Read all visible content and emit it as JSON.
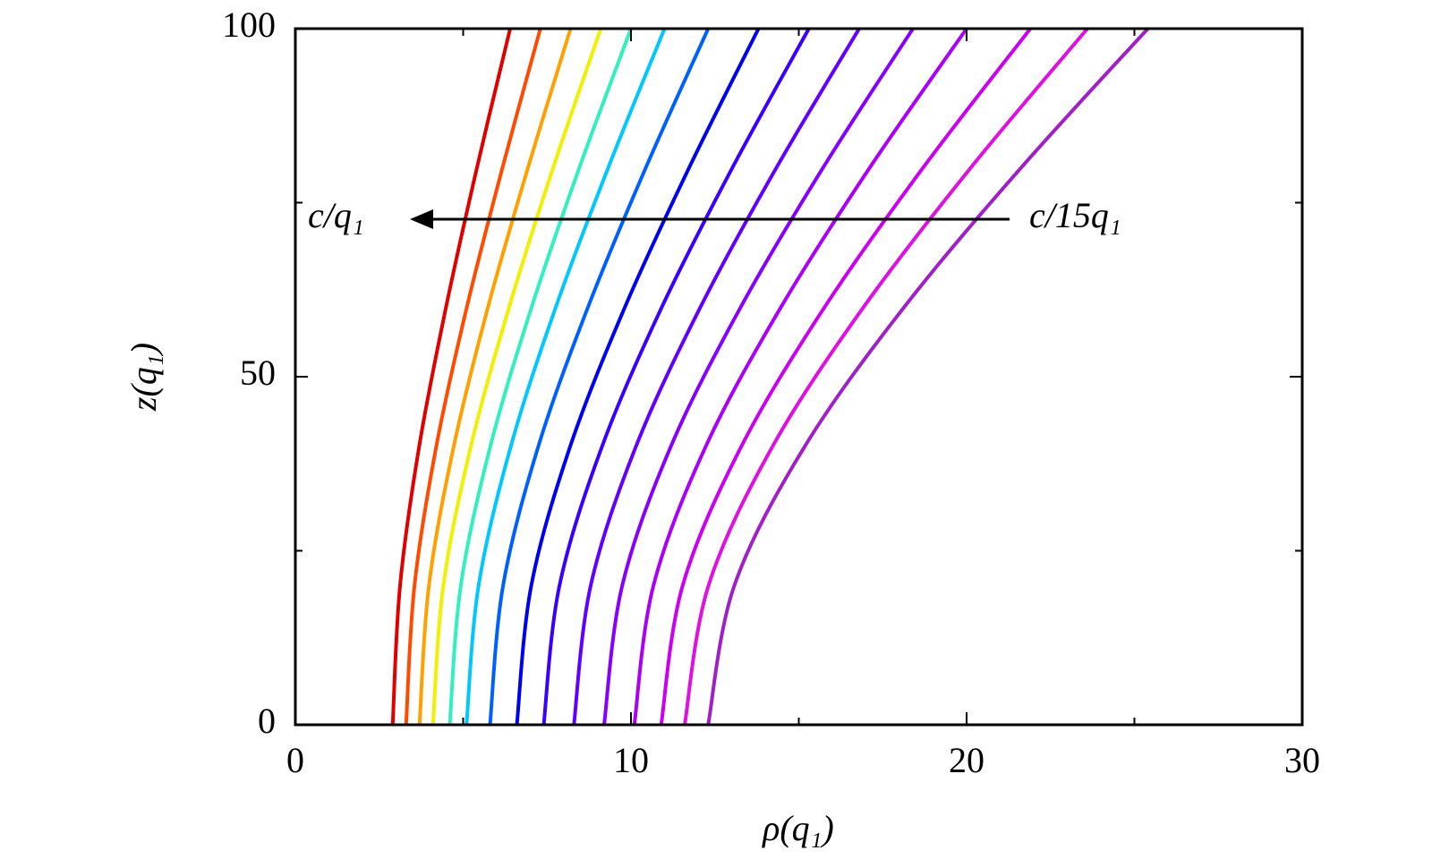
{
  "chart_data": {
    "type": "line",
    "xlabel": "ρ(q₁)",
    "ylabel": "z(q₁)",
    "annotations": [
      "c/q₁",
      "c/15q₁"
    ],
    "xlim": [
      0,
      30
    ],
    "ylim": [
      0,
      100
    ],
    "xticks": [
      0,
      10,
      20,
      30
    ],
    "yticks": [
      0,
      50,
      100
    ],
    "xminorticks": [
      5,
      15,
      25
    ],
    "yminorticks": [
      25,
      75
    ],
    "grid": false,
    "y": [
      0,
      20,
      40,
      60,
      80,
      100
    ],
    "series": [
      {
        "color": "#e00000",
        "x": [
          2.9,
          3.12,
          3.69,
          4.49,
          5.41,
          6.4
        ]
      },
      {
        "color": "#ff4a00",
        "x": [
          3.3,
          3.55,
          4.2,
          5.11,
          6.17,
          7.3
        ]
      },
      {
        "color": "#ffa000",
        "x": [
          3.7,
          3.98,
          4.72,
          5.74,
          6.93,
          8.2
        ]
      },
      {
        "color": "#f0f000",
        "x": [
          4.1,
          4.41,
          5.23,
          6.37,
          7.68,
          9.1
        ]
      },
      {
        "color": "#30f0c0",
        "x": [
          4.6,
          4.93,
          5.81,
          7.04,
          8.46,
          10.0
        ]
      },
      {
        "color": "#00c8ff",
        "x": [
          5.1,
          5.46,
          6.42,
          7.76,
          9.32,
          11.0
        ]
      },
      {
        "color": "#0060ff",
        "x": [
          5.8,
          6.19,
          7.24,
          8.72,
          10.44,
          12.3
        ]
      },
      {
        "color": "#0000f0",
        "x": [
          6.6,
          7.03,
          8.19,
          9.82,
          11.73,
          13.8
        ]
      },
      {
        "color": "#3a00ff",
        "x": [
          7.4,
          7.87,
          9.14,
          10.92,
          13.02,
          15.3
        ]
      },
      {
        "color": "#6000ff",
        "x": [
          8.3,
          8.8,
          10.15,
          12.07,
          14.33,
          16.8
        ]
      },
      {
        "color": "#8600ff",
        "x": [
          9.2,
          9.74,
          11.19,
          13.27,
          15.72,
          18.4
        ]
      },
      {
        "color": "#aa00f8",
        "x": [
          10.1,
          10.67,
          12.23,
          14.47,
          17.11,
          20.0
        ]
      },
      {
        "color": "#cc00f0",
        "x": [
          10.9,
          11.54,
          13.29,
          15.77,
          18.7,
          21.9
        ]
      },
      {
        "color": "#e010e0",
        "x": [
          11.6,
          12.31,
          14.22,
          16.93,
          20.12,
          23.6
        ]
      },
      {
        "color": "#a020c8",
        "x": [
          12.3,
          13.08,
          15.18,
          18.14,
          21.62,
          25.4
        ]
      }
    ]
  }
}
